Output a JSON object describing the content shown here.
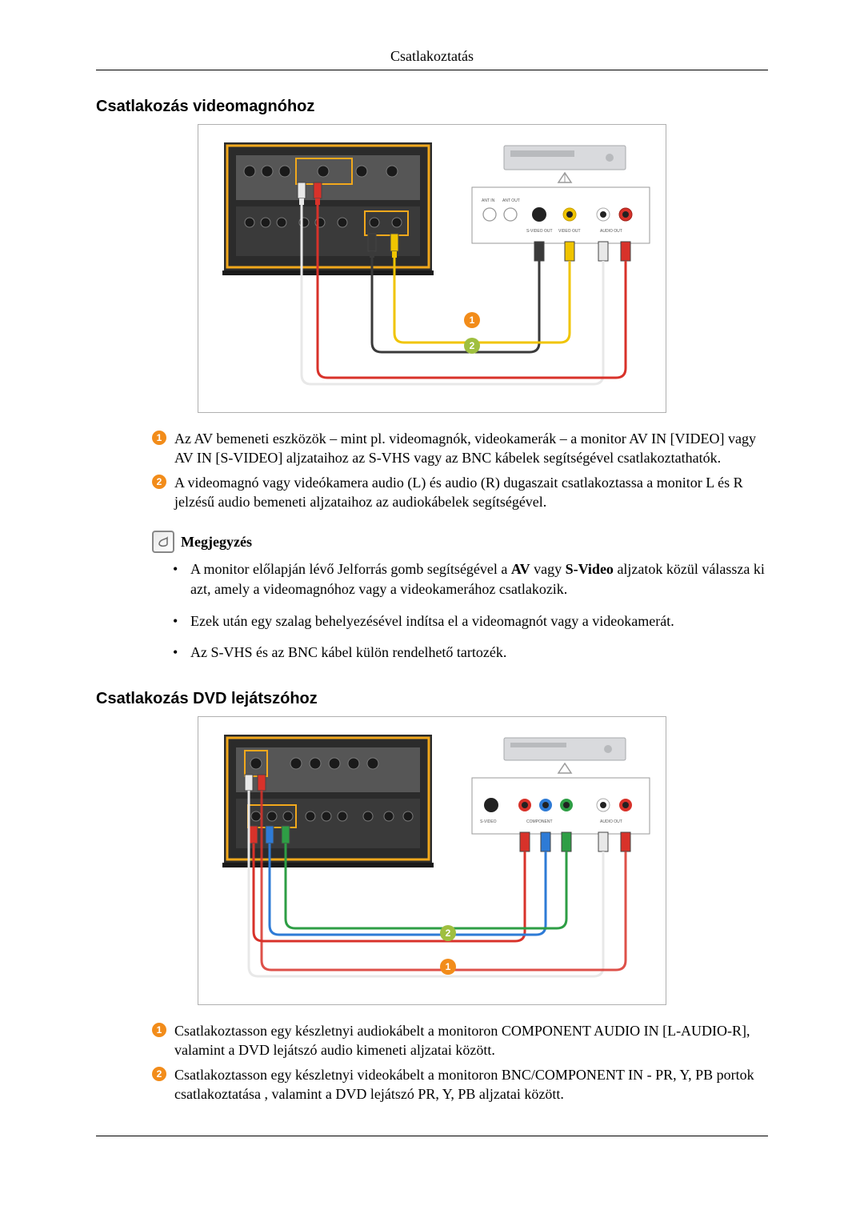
{
  "header": {
    "title": "Csatlakoztatás"
  },
  "section_vcr": {
    "title": "Csatlakozás videomagnóhoz",
    "callouts": [
      {
        "n": "1",
        "color": "#f28c1a",
        "html": "Az AV bemeneti eszközök – mint pl. videomagnók, videokamerák – a monitor AV IN [VIDEO] vagy AV IN [S-VIDEO] aljzataihoz az S-VHS vagy az BNC kábelek segítségével csatlakoztathatók."
      },
      {
        "n": "2",
        "color": "#f28c1a",
        "html": "A videomagnó vagy videókamera audio (L) és audio (R) dugaszait csatlakoztassa a monitor L és R jelzésű audio bemeneti aljzataihoz az audiokábelek segítségével."
      }
    ],
    "note_label": "Megjegyzés",
    "note_items": [
      "A monitor előlapján lévő Jelforrás gomb segítségével a <b>AV</b> vagy <b>S-Video</b> aljzatok közül válassza ki azt, amely a videomagnóhoz vagy a videokamerához csatlakozik.",
      "Ezek után egy szalag behelyezésével indítsa el a videomagnót vagy a videokamerát.",
      "Az S-VHS és az BNC kábel külön rendelhető tartozék."
    ],
    "diagram": {
      "callout1_color": "#f28c1a",
      "callout2_color": "#9fbf3f",
      "monitor_bezel": "#2b2b2b",
      "monitor_frame_hi": "#f2a81c",
      "panel_bg": "#565656",
      "panel_dark": "#3a3a3a",
      "vcr_bg": "#d9dadd",
      "cable_video": "#f0c400",
      "cable_svideo": "#3a3a3a",
      "cable_audio_l": "#e8e8e8",
      "cable_audio_r": "#d8322a",
      "diagram_border": "#b0b0b0",
      "labels": {
        "svideo": "S-VIDEO OUT",
        "videoout": "VIDEO OUT",
        "audioout": "AUDIO OUT",
        "antin": "ANT IN",
        "antout": "ANT OUT"
      }
    }
  },
  "section_dvd": {
    "title": "Csatlakozás DVD lejátszóhoz",
    "callouts": [
      {
        "n": "1",
        "color": "#f28c1a",
        "html": "Csatlakoztasson egy készletnyi audiokábelt a monitoron COMPONENT AUDIO IN [L-AUDIO-R], valamint a DVD lejátszó audio kimeneti aljzatai között."
      },
      {
        "n": "2",
        "color": "#f28c1a",
        "html": "Csatlakoztasson egy készletnyi videokábelt a monitoron BNC/COMPONENT IN - PR, Y, PB portok csatlakoztatása , valamint a DVD lejátszó PR, Y, PB aljzatai között."
      }
    ],
    "diagram": {
      "callout1_color": "#f28c1a",
      "callout2_color": "#9fbf3f",
      "monitor_bezel": "#2b2b2b",
      "monitor_frame_hi": "#f2a81c",
      "panel_bg": "#565656",
      "panel_dark": "#3a3a3a",
      "dvd_bg": "#d9dadd",
      "cable_pr": "#d8322a",
      "cable_y": "#2e7bd6",
      "cable_pb": "#2e9e45",
      "cable_audio_l": "#e8e8e8",
      "cable_audio_r": "#d8322a",
      "diagram_border": "#b0b0b0",
      "labels": {
        "svideo": "S-VIDEO",
        "component": "COMPONENT",
        "audioout": "AUDIO OUT"
      }
    }
  }
}
